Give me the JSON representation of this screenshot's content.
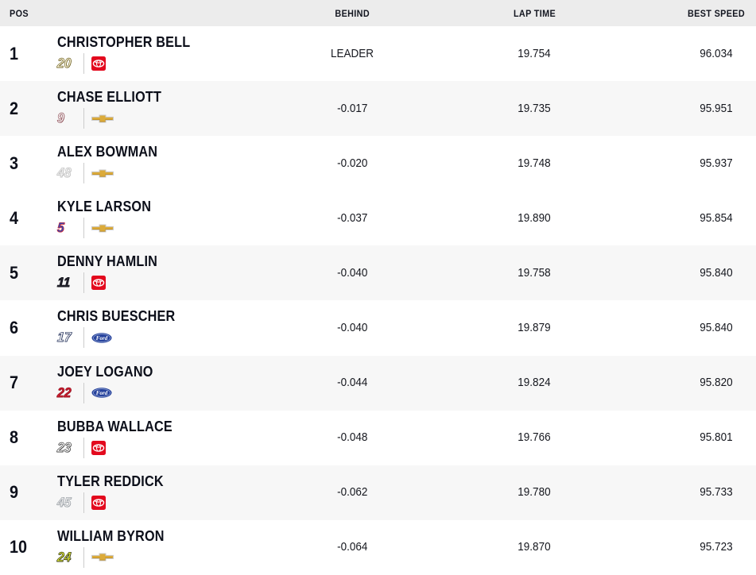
{
  "header": {
    "pos_label": "POS",
    "behind_label": "BEHIND",
    "lap_time_label": "LAP TIME",
    "best_speed_label": "BEST SPEED"
  },
  "colors": {
    "header_bg": "#ececec",
    "row_alt_bg": "#f7f7f7",
    "text": "#0c0f1a",
    "toyota_red": "#e30a1e",
    "chevrolet_gold": "#dcab3a",
    "chevrolet_gold_dark": "#b9861c",
    "chevrolet_edge": "#c9c9c9",
    "ford_blue": "#26429c",
    "divider": "#cccccc"
  },
  "rows": [
    {
      "pos": "1",
      "driver": "CHRISTOPHER BELL",
      "car_number": "20",
      "number_fill": "#f8f2d8",
      "number_edge": "#6e6124",
      "manufacturer": "toyota",
      "behind": "LEADER",
      "lap_time": "19.754",
      "best_speed": "96.034",
      "highlight": false
    },
    {
      "pos": "2",
      "driver": "CHASE ELLIOTT",
      "car_number": "9",
      "number_fill": "#ffffff",
      "number_edge": "#8a4a52",
      "manufacturer": "chevrolet",
      "behind": "-0.017",
      "lap_time": "19.735",
      "best_speed": "95.951",
      "highlight": true
    },
    {
      "pos": "3",
      "driver": "ALEX BOWMAN",
      "car_number": "48",
      "number_fill": "#f2f2f2",
      "number_edge": "#bfbfbf",
      "manufacturer": "chevrolet",
      "behind": "-0.020",
      "lap_time": "19.748",
      "best_speed": "95.937",
      "highlight": false
    },
    {
      "pos": "4",
      "driver": "KYLE LARSON",
      "car_number": "5",
      "number_fill": "#2c50c0",
      "number_edge": "#cf2430",
      "manufacturer": "chevrolet",
      "behind": "-0.037",
      "lap_time": "19.890",
      "best_speed": "95.854",
      "highlight": false
    },
    {
      "pos": "5",
      "driver": "DENNY HAMLIN",
      "car_number": "11",
      "number_fill": "#23232d",
      "number_edge": "#15151d",
      "manufacturer": "toyota",
      "behind": "-0.040",
      "lap_time": "19.758",
      "best_speed": "95.840",
      "highlight": true
    },
    {
      "pos": "6",
      "driver": "CHRIS BUESCHER",
      "car_number": "17",
      "number_fill": "#ffffff",
      "number_edge": "#26335c",
      "manufacturer": "ford",
      "behind": "-0.040",
      "lap_time": "19.879",
      "best_speed": "95.840",
      "highlight": false
    },
    {
      "pos": "7",
      "driver": "JOEY LOGANO",
      "car_number": "22",
      "number_fill": "#d31a2e",
      "number_edge": "#8f1622",
      "manufacturer": "ford",
      "behind": "-0.044",
      "lap_time": "19.824",
      "best_speed": "95.820",
      "highlight": true
    },
    {
      "pos": "8",
      "driver": "BUBBA WALLACE",
      "car_number": "23",
      "number_fill": "#fbfbfb",
      "number_edge": "#3a3a3a",
      "manufacturer": "toyota",
      "behind": "-0.048",
      "lap_time": "19.766",
      "best_speed": "95.801",
      "highlight": false
    },
    {
      "pos": "9",
      "driver": "TYLER REDDICK",
      "car_number": "45",
      "number_fill": "#eeeeee",
      "number_edge": "#9aa0a6",
      "manufacturer": "toyota",
      "behind": "-0.062",
      "lap_time": "19.780",
      "best_speed": "95.733",
      "highlight": true
    },
    {
      "pos": "10",
      "driver": "WILLIAM BYRON",
      "car_number": "24",
      "number_fill": "#d9e135",
      "number_edge": "#2f3317",
      "manufacturer": "chevrolet",
      "behind": "-0.064",
      "lap_time": "19.870",
      "best_speed": "95.723",
      "highlight": false
    }
  ]
}
